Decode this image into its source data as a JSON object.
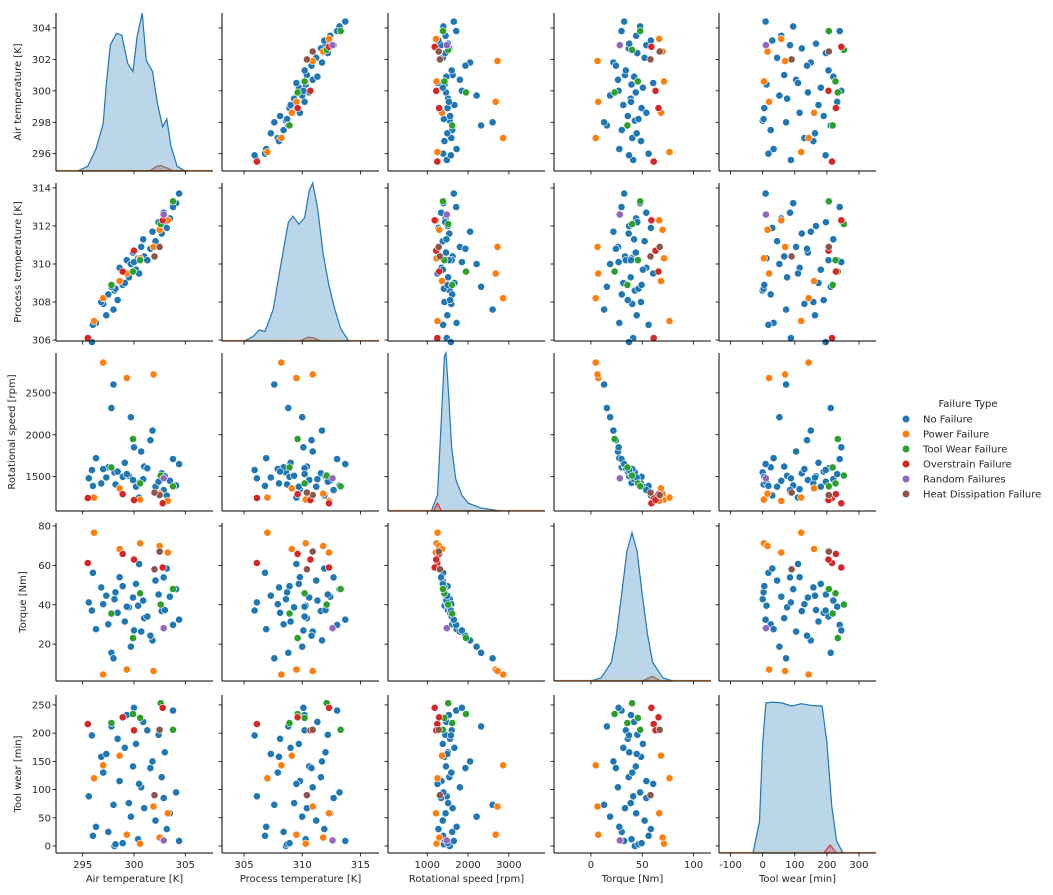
{
  "chart_data": {
    "type": "scatter",
    "kind": "pairplot",
    "diag_kind": "kde",
    "grid": false,
    "legend": {
      "title": "Failure Type",
      "placement": "right",
      "entries": [
        "No Failure",
        "Power Failure",
        "Tool Wear Failure",
        "Overstrain Failure",
        "Random Failures",
        "Heat Dissipation Failure"
      ],
      "colors": [
        "#1f77b4",
        "#ff7f0e",
        "#2ca02c",
        "#d62728",
        "#9467bd",
        "#8c564b"
      ]
    },
    "variables": [
      {
        "label": "Air temperature [K]",
        "xlim": [
          292.4,
          307.7
        ],
        "xticks": [
          295,
          300,
          305
        ],
        "ylim": [
          294.9,
          304.95
        ],
        "yticks": [
          296,
          298,
          300,
          302,
          304
        ],
        "kde": {
          "x": [
            294.5,
            295.5,
            296.3,
            297,
            297.3,
            297.7,
            298.3,
            298.8,
            299.4,
            299.9,
            300.3,
            300.8,
            301.2,
            301.8,
            302.3,
            302.8,
            303.2,
            303.6,
            304.2,
            305
          ],
          "density": [
            0,
            0.03,
            0.14,
            0.3,
            0.55,
            0.8,
            0.87,
            0.86,
            0.68,
            0.63,
            0.85,
            1.0,
            0.7,
            0.63,
            0.42,
            0.28,
            0.33,
            0.16,
            0.03,
            0
          ]
        },
        "failure_kde": {
          "class": 5,
          "x": [
            301.5,
            302.2,
            302.6,
            303.2,
            303.8
          ],
          "density": [
            0,
            0.03,
            0.035,
            0.02,
            0
          ]
        }
      },
      {
        "label": "Process temperature [K]",
        "xlim": [
          303.1,
          316.6
        ],
        "xticks": [
          305,
          310,
          315
        ],
        "ylim": [
          305.95,
          314.26
        ],
        "yticks": [
          306,
          308,
          310,
          312,
          314
        ],
        "kde": {
          "x": [
            305,
            305.8,
            306.3,
            306.8,
            307.5,
            308.2,
            308.8,
            309.2,
            309.7,
            310.2,
            310.6,
            310.9,
            311.3,
            311.8,
            312.3,
            312.8,
            313.3,
            314
          ],
          "density": [
            0,
            0.03,
            0.07,
            0.06,
            0.2,
            0.5,
            0.75,
            0.79,
            0.74,
            0.78,
            0.95,
            1.0,
            0.85,
            0.55,
            0.35,
            0.2,
            0.08,
            0
          ]
        },
        "failure_kde": {
          "class": 5,
          "x": [
            309.8,
            310.5,
            311,
            311.6
          ],
          "density": [
            0,
            0.025,
            0.02,
            0
          ]
        }
      },
      {
        "label": "Rotational speed [rpm]",
        "xlim": [
          38,
          3885
        ],
        "xticks": [
          1000,
          2000,
          3000
        ],
        "ylim": [
          1090,
          2976
        ],
        "yticks": [
          1500,
          2000,
          2500
        ],
        "kde": {
          "x": [
            1100,
            1250,
            1350,
            1420,
            1460,
            1520,
            1600,
            1700,
            1850,
            2000,
            2300,
            2800
          ],
          "density": [
            0,
            0.1,
            0.6,
            0.98,
            1.0,
            0.75,
            0.4,
            0.2,
            0.1,
            0.05,
            0.02,
            0
          ]
        },
        "failure_kde": {
          "class": 3,
          "x": [
            1150,
            1250,
            1350
          ],
          "density": [
            0,
            0.05,
            0
          ]
        }
      },
      {
        "label": "Torque [Nm]",
        "xlim": [
          -36,
          117
        ],
        "xticks": [
          0,
          50,
          100
        ],
        "ylim": [
          1.3,
          81.5
        ],
        "yticks": [
          20,
          40,
          60,
          80
        ],
        "kde": {
          "x": [
            0,
            10,
            20,
            25,
            30,
            35,
            40,
            45,
            50,
            55,
            60,
            70,
            80
          ],
          "density": [
            0,
            0.02,
            0.12,
            0.3,
            0.55,
            0.82,
            0.94,
            0.82,
            0.55,
            0.3,
            0.12,
            0.02,
            0
          ]
        },
        "failure_kde": {
          "class": 5,
          "x": [
            50,
            60,
            68
          ],
          "density": [
            0,
            0.03,
            0
          ]
        }
      },
      {
        "label": "Tool wear [min]",
        "xlim": [
          -136,
          353
        ],
        "xticks": [
          -100,
          0,
          100,
          200,
          300
        ],
        "ylim": [
          -12.4,
          267.6
        ],
        "yticks": [
          0,
          50,
          100,
          150,
          200,
          250
        ],
        "kde": {
          "x": [
            -30,
            -10,
            0,
            10,
            30,
            60,
            90,
            120,
            150,
            185,
            200,
            215,
            230,
            250
          ],
          "density": [
            0,
            0.2,
            0.7,
            0.95,
            0.955,
            0.95,
            0.93,
            0.945,
            0.935,
            0.93,
            0.7,
            0.3,
            0.08,
            0
          ]
        },
        "failure_kde": {
          "class": 3,
          "x": [
            190,
            210,
            230
          ],
          "density": [
            0,
            0.05,
            0
          ]
        }
      }
    ],
    "sample_rows_note_columns": [
      "Air temperature [K]",
      "Process temperature [K]",
      "Rotational speed [rpm]",
      "Torque [Nm]",
      "Tool wear [min]",
      "Failure Type"
    ],
    "rows": [
      [
        298.1,
        308.6,
        1551,
        42.8,
        0,
        0
      ],
      [
        298.2,
        308.7,
        1408,
        46.3,
        3,
        0
      ],
      [
        298.9,
        308.9,
        1498,
        49.4,
        5,
        0
      ],
      [
        300.4,
        310.3,
        1426,
        39.5,
        12,
        0
      ],
      [
        297.5,
        308.4,
        1612,
        30.1,
        25,
        0
      ],
      [
        296.3,
        306.9,
        1720,
        27.6,
        34,
        0
      ],
      [
        302.1,
        311.2,
        1380,
        52.3,
        45,
        0
      ],
      [
        303.5,
        312.4,
        1450,
        44.1,
        58,
        0
      ],
      [
        301.0,
        310.4,
        1620,
        33.2,
        67,
        0
      ],
      [
        299.5,
        309.3,
        1510,
        38.7,
        76,
        0
      ],
      [
        295.6,
        306.1,
        1480,
        41.2,
        88,
        0
      ],
      [
        304.1,
        313.2,
        1395,
        47.9,
        95,
        0
      ],
      [
        300.7,
        310.9,
        1800,
        26.4,
        104,
        0
      ],
      [
        298.6,
        309.8,
        1350,
        54.0,
        115,
        0
      ],
      [
        302.7,
        311.6,
        1540,
        36.8,
        122,
        0
      ],
      [
        297.0,
        307.9,
        1590,
        40.3,
        130,
        0
      ],
      [
        299.9,
        310.6,
        1460,
        43.7,
        141,
        0
      ],
      [
        301.8,
        311.7,
        2050,
        21.9,
        150,
        0
      ],
      [
        296.8,
        308.0,
        1420,
        48.8,
        158,
        0
      ],
      [
        303.0,
        312.0,
        1505,
        37.3,
        166,
        0
      ],
      [
        299.1,
        309.0,
        1665,
        31.5,
        174,
        0
      ],
      [
        300.2,
        309.7,
        1380,
        50.6,
        181,
        0
      ],
      [
        298.4,
        308.1,
        1560,
        35.9,
        190,
        0
      ],
      [
        302.4,
        312.2,
        1440,
        45.2,
        197,
        0
      ],
      [
        301.3,
        310.2,
        1600,
        34.0,
        205,
        0
      ],
      [
        297.8,
        308.8,
        2320,
        15.6,
        212,
        0
      ],
      [
        300.9,
        311.3,
        1470,
        42.1,
        220,
        0
      ],
      [
        299.3,
        310.2,
        1530,
        39.0,
        232,
        0
      ],
      [
        303.8,
        313.0,
        1710,
        29.8,
        240,
        0
      ],
      [
        296.0,
        306.8,
        1390,
        56.2,
        18,
        0
      ],
      [
        304.4,
        313.7,
        1650,
        32.4,
        9,
        0
      ],
      [
        298.0,
        307.6,
        2600,
        12.8,
        73,
        0
      ],
      [
        300.5,
        309.5,
        1250,
        60.7,
        110,
        0
      ],
      [
        301.6,
        310.8,
        1935,
        24.3,
        138,
        0
      ],
      [
        295.9,
        305.9,
        1580,
        37.1,
        196,
        0
      ],
      [
        299.7,
        310.0,
        2210,
        18.7,
        52,
        0
      ],
      [
        302.9,
        312.7,
        1340,
        53.9,
        85,
        0
      ],
      [
        297.3,
        307.3,
        1490,
        44.6,
        163,
        0
      ],
      [
        303.2,
        311.9,
        1275,
        58.4,
        30,
        0
      ],
      [
        300.0,
        310.1,
        1850,
        27.0,
        245,
        0
      ],
      [
        297.0,
        308.2,
        2861,
        4.6,
        143,
        1
      ],
      [
        299.3,
        309.5,
        2678,
        7.1,
        20,
        1
      ],
      [
        301.9,
        310.9,
        2720,
        6.4,
        70,
        1
      ],
      [
        300.6,
        310.3,
        1226,
        71.2,
        4,
        1
      ],
      [
        296.1,
        307.0,
        1250,
        76.6,
        120,
        1
      ],
      [
        302.5,
        311.8,
        1296,
        69.8,
        15,
        1
      ],
      [
        298.6,
        309.1,
        1361,
        68.3,
        160,
        1
      ],
      [
        303.3,
        312.3,
        1211,
        66.5,
        58,
        1
      ],
      [
        302.6,
        312.1,
        1512,
        40.1,
        253,
        2
      ],
      [
        300.6,
        310.2,
        1420,
        45.8,
        227,
        2
      ],
      [
        297.8,
        308.9,
        1610,
        35.5,
        218,
        2
      ],
      [
        303.8,
        313.3,
        1385,
        48.0,
        206,
        2
      ],
      [
        299.9,
        309.6,
        1950,
        23.1,
        234,
        2
      ],
      [
        295.5,
        306.1,
        1245,
        61.2,
        216,
        3
      ],
      [
        298.9,
        309.6,
        1290,
        65.8,
        228,
        3
      ],
      [
        302.8,
        312.3,
        1182,
        58.9,
        245,
        3
      ],
      [
        300.0,
        310.7,
        1220,
        62.9,
        205,
        3
      ],
      [
        302.9,
        312.6,
        1480,
        28.1,
        10,
        4
      ],
      [
        302.5,
        310.9,
        1280,
        67.0,
        206,
        5
      ],
      [
        302.0,
        310.4,
        1310,
        58.0,
        90,
        5
      ]
    ]
  }
}
